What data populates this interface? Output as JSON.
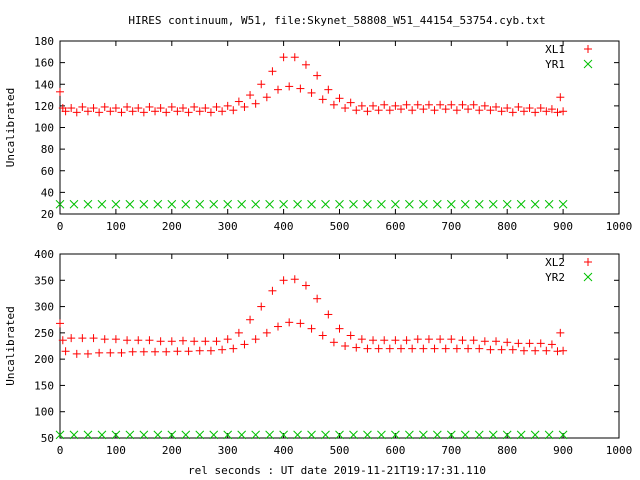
{
  "title": "HIRES continuum, W51, file:Skynet_58808_W51_44154_53754.cyb.txt",
  "xlabel": "rel seconds : UT date 2019-11-21T19:17:31.110",
  "colors": {
    "series1": "#ff0000",
    "series2": "#00c000",
    "frame": "#000000"
  },
  "chart_data": [
    {
      "type": "scatter",
      "marker_styles": [
        "plus",
        "cross"
      ],
      "xlabel": "",
      "ylabel": "Uncalibrated",
      "xlim": [
        0,
        1000
      ],
      "ylim": [
        20,
        180
      ],
      "xticks": [
        0,
        100,
        200,
        300,
        400,
        500,
        600,
        700,
        800,
        900,
        1000
      ],
      "yticks": [
        20,
        40,
        60,
        80,
        100,
        120,
        140,
        160,
        180
      ],
      "grid": false,
      "legend_position": "top-right",
      "series": [
        {
          "name": "XL1",
          "x": [
            0,
            5,
            10,
            20,
            30,
            40,
            50,
            60,
            70,
            80,
            90,
            100,
            110,
            120,
            130,
            140,
            150,
            160,
            170,
            180,
            190,
            200,
            210,
            220,
            230,
            240,
            250,
            260,
            270,
            280,
            290,
            300,
            310,
            320,
            330,
            340,
            350,
            360,
            370,
            380,
            390,
            400,
            410,
            420,
            430,
            440,
            450,
            460,
            470,
            480,
            490,
            500,
            510,
            520,
            530,
            540,
            550,
            560,
            570,
            580,
            590,
            600,
            610,
            620,
            630,
            640,
            650,
            660,
            670,
            680,
            690,
            700,
            710,
            720,
            730,
            740,
            750,
            760,
            770,
            780,
            790,
            800,
            810,
            820,
            830,
            840,
            850,
            860,
            870,
            880,
            890,
            895,
            900
          ],
          "y": [
            133,
            118,
            115,
            118,
            114,
            119,
            115,
            118,
            114,
            119,
            115,
            118,
            114,
            119,
            115,
            118,
            114,
            119,
            115,
            118,
            114,
            119,
            115,
            118,
            114,
            119,
            115,
            118,
            114,
            119,
            115,
            120,
            116,
            124,
            119,
            130,
            122,
            140,
            128,
            152,
            135,
            165,
            138,
            165,
            136,
            158,
            132,
            148,
            126,
            135,
            121,
            127,
            118,
            123,
            116,
            120,
            115,
            120,
            116,
            121,
            116,
            120,
            117,
            121,
            116,
            121,
            117,
            121,
            116,
            121,
            117,
            121,
            116,
            121,
            117,
            121,
            116,
            120,
            116,
            119,
            115,
            118,
            114,
            119,
            115,
            118,
            114,
            118,
            115,
            117,
            114,
            128,
            115
          ]
        },
        {
          "name": "YR1",
          "x": [
            0,
            25,
            50,
            75,
            100,
            125,
            150,
            175,
            200,
            225,
            250,
            275,
            300,
            325,
            350,
            375,
            400,
            425,
            450,
            475,
            500,
            525,
            550,
            575,
            600,
            625,
            650,
            675,
            700,
            725,
            750,
            775,
            800,
            825,
            850,
            875,
            900
          ],
          "y": [
            29,
            29,
            29,
            29,
            29,
            29,
            29,
            29,
            29,
            29,
            29,
            29,
            29,
            29,
            29,
            29,
            29,
            29,
            29,
            29,
            29,
            29,
            29,
            29,
            29,
            29,
            29,
            29,
            29,
            29,
            29,
            29,
            29,
            29,
            29,
            29,
            29
          ]
        }
      ]
    },
    {
      "type": "scatter",
      "marker_styles": [
        "plus",
        "cross"
      ],
      "xlabel": "",
      "ylabel": "Uncalibrated",
      "xlim": [
        0,
        1000
      ],
      "ylim": [
        50,
        400
      ],
      "xticks": [
        0,
        100,
        200,
        300,
        400,
        500,
        600,
        700,
        800,
        900,
        1000
      ],
      "yticks": [
        50,
        100,
        150,
        200,
        250,
        300,
        350,
        400
      ],
      "grid": false,
      "legend_position": "top-right",
      "series": [
        {
          "name": "XL2",
          "x": [
            0,
            5,
            10,
            20,
            30,
            40,
            50,
            60,
            70,
            80,
            90,
            100,
            110,
            120,
            130,
            140,
            150,
            160,
            170,
            180,
            190,
            200,
            210,
            220,
            230,
            240,
            250,
            260,
            270,
            280,
            290,
            300,
            310,
            320,
            330,
            340,
            350,
            360,
            370,
            380,
            390,
            400,
            410,
            420,
            430,
            440,
            450,
            460,
            470,
            480,
            490,
            500,
            510,
            520,
            530,
            540,
            550,
            560,
            570,
            580,
            590,
            600,
            610,
            620,
            630,
            640,
            650,
            660,
            670,
            680,
            690,
            700,
            710,
            720,
            730,
            740,
            750,
            760,
            770,
            780,
            790,
            800,
            810,
            820,
            830,
            840,
            850,
            860,
            870,
            880,
            890,
            895,
            900
          ],
          "y": [
            268,
            236,
            215,
            240,
            210,
            240,
            210,
            240,
            212,
            238,
            212,
            238,
            212,
            236,
            214,
            236,
            214,
            236,
            214,
            234,
            214,
            234,
            215,
            235,
            215,
            234,
            216,
            234,
            216,
            234,
            218,
            238,
            220,
            250,
            228,
            275,
            238,
            300,
            250,
            330,
            262,
            350,
            270,
            352,
            268,
            340,
            258,
            315,
            245,
            285,
            232,
            258,
            225,
            245,
            222,
            238,
            220,
            236,
            220,
            236,
            220,
            236,
            220,
            236,
            220,
            238,
            220,
            238,
            220,
            238,
            220,
            238,
            220,
            236,
            220,
            236,
            220,
            234,
            218,
            234,
            218,
            232,
            218,
            230,
            216,
            230,
            216,
            230,
            216,
            228,
            215,
            250,
            216
          ]
        },
        {
          "name": "YR2",
          "x": [
            0,
            25,
            50,
            75,
            100,
            125,
            150,
            175,
            200,
            225,
            250,
            275,
            300,
            325,
            350,
            375,
            400,
            425,
            450,
            475,
            500,
            525,
            550,
            575,
            600,
            625,
            650,
            675,
            700,
            725,
            750,
            775,
            800,
            825,
            850,
            875,
            900
          ],
          "y": [
            56,
            56,
            56,
            56,
            56,
            56,
            56,
            56,
            56,
            56,
            56,
            56,
            56,
            56,
            56,
            56,
            56,
            56,
            56,
            56,
            56,
            56,
            56,
            56,
            56,
            56,
            56,
            56,
            56,
            56,
            56,
            56,
            56,
            56,
            56,
            56,
            56
          ]
        }
      ]
    }
  ]
}
